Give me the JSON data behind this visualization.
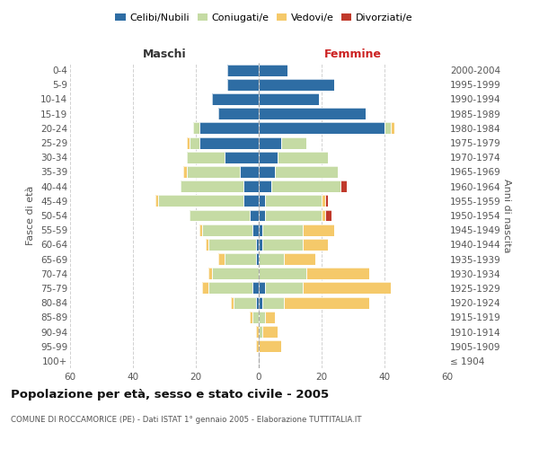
{
  "age_groups": [
    "100+",
    "95-99",
    "90-94",
    "85-89",
    "80-84",
    "75-79",
    "70-74",
    "65-69",
    "60-64",
    "55-59",
    "50-54",
    "45-49",
    "40-44",
    "35-39",
    "30-34",
    "25-29",
    "20-24",
    "15-19",
    "10-14",
    "5-9",
    "0-4"
  ],
  "birth_years": [
    "≤ 1904",
    "1905-1909",
    "1910-1914",
    "1915-1919",
    "1920-1924",
    "1925-1929",
    "1930-1934",
    "1935-1939",
    "1940-1944",
    "1945-1949",
    "1950-1954",
    "1955-1959",
    "1960-1964",
    "1965-1969",
    "1970-1974",
    "1975-1979",
    "1980-1984",
    "1985-1989",
    "1990-1994",
    "1995-1999",
    "2000-2004"
  ],
  "maschi": {
    "celibi": [
      0,
      0,
      0,
      0,
      1,
      2,
      0,
      1,
      1,
      2,
      3,
      5,
      5,
      6,
      11,
      19,
      19,
      13,
      15,
      10,
      10
    ],
    "coniugati": [
      0,
      0,
      0,
      2,
      7,
      14,
      15,
      10,
      15,
      16,
      19,
      27,
      20,
      17,
      12,
      3,
      2,
      0,
      0,
      0,
      0
    ],
    "vedovi": [
      0,
      1,
      1,
      1,
      1,
      2,
      1,
      2,
      1,
      1,
      0,
      1,
      0,
      1,
      0,
      1,
      0,
      0,
      0,
      0,
      0
    ],
    "divorziati": [
      0,
      0,
      0,
      0,
      0,
      0,
      0,
      0,
      0,
      0,
      0,
      0,
      0,
      0,
      0,
      0,
      0,
      0,
      0,
      0,
      0
    ]
  },
  "femmine": {
    "nubili": [
      0,
      0,
      0,
      0,
      1,
      2,
      0,
      0,
      1,
      1,
      2,
      2,
      4,
      5,
      6,
      7,
      40,
      34,
      19,
      24,
      9
    ],
    "coniugate": [
      0,
      0,
      1,
      2,
      7,
      12,
      15,
      8,
      13,
      13,
      18,
      18,
      22,
      20,
      16,
      8,
      2,
      0,
      0,
      0,
      0
    ],
    "vedove": [
      0,
      7,
      5,
      3,
      27,
      28,
      20,
      10,
      8,
      10,
      1,
      1,
      0,
      0,
      0,
      0,
      1,
      0,
      0,
      0,
      0
    ],
    "divorziate": [
      0,
      0,
      0,
      0,
      0,
      0,
      0,
      0,
      0,
      0,
      2,
      1,
      2,
      0,
      0,
      0,
      0,
      0,
      0,
      0,
      0
    ]
  },
  "colors": {
    "celibi": "#2e6da4",
    "coniugati": "#c5dba4",
    "vedovi": "#f5c96a",
    "divorziati": "#c0392b"
  },
  "title": "Popolazione per età, sesso e stato civile - 2005",
  "subtitle": "COMUNE DI ROCCAMORICE (PE) - Dati ISTAT 1° gennaio 2005 - Elaborazione TUTTITALIA.IT",
  "maschi_label": "Maschi",
  "femmine_label": "Femmine",
  "ylabel_left": "Fasce di età",
  "ylabel_right": "Anni di nascita",
  "legend_labels": [
    "Celibi/Nubili",
    "Coniugati/e",
    "Vedovi/e",
    "Divorziati/e"
  ],
  "xlim": 60,
  "bg_color": "#ffffff",
  "grid_color": "#cccccc"
}
